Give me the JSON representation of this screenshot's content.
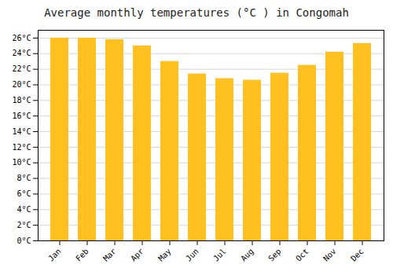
{
  "chart_data": {
    "type": "bar",
    "title": "Average monthly temperatures (°C ) in Congomah",
    "categories": [
      "Jan",
      "Feb",
      "Mar",
      "Apr",
      "May",
      "Jun",
      "Jul",
      "Aug",
      "Sep",
      "Oct",
      "Nov",
      "Dec"
    ],
    "values": [
      26.0,
      26.0,
      25.8,
      25.0,
      23.0,
      21.4,
      20.8,
      20.6,
      21.5,
      22.5,
      24.2,
      25.3
    ],
    "color": "#FFC020",
    "ylim": [
      0,
      27
    ],
    "yticks": [
      {
        "value": 0,
        "label": "0°C"
      },
      {
        "value": 2,
        "label": "2°C"
      },
      {
        "value": 4,
        "label": "4°C"
      },
      {
        "value": 6,
        "label": "6°C"
      },
      {
        "value": 8,
        "label": "8°C"
      },
      {
        "value": 10,
        "label": "10°C"
      },
      {
        "value": 12,
        "label": "12°C"
      },
      {
        "value": 14,
        "label": "14°C"
      },
      {
        "value": 16,
        "label": "16°C"
      },
      {
        "value": 18,
        "label": "18°C"
      },
      {
        "value": 20,
        "label": "20°C"
      },
      {
        "value": 22,
        "label": "22°C"
      },
      {
        "value": 24,
        "label": "24°C"
      },
      {
        "value": 26,
        "label": "26°C"
      }
    ],
    "grid": true
  }
}
